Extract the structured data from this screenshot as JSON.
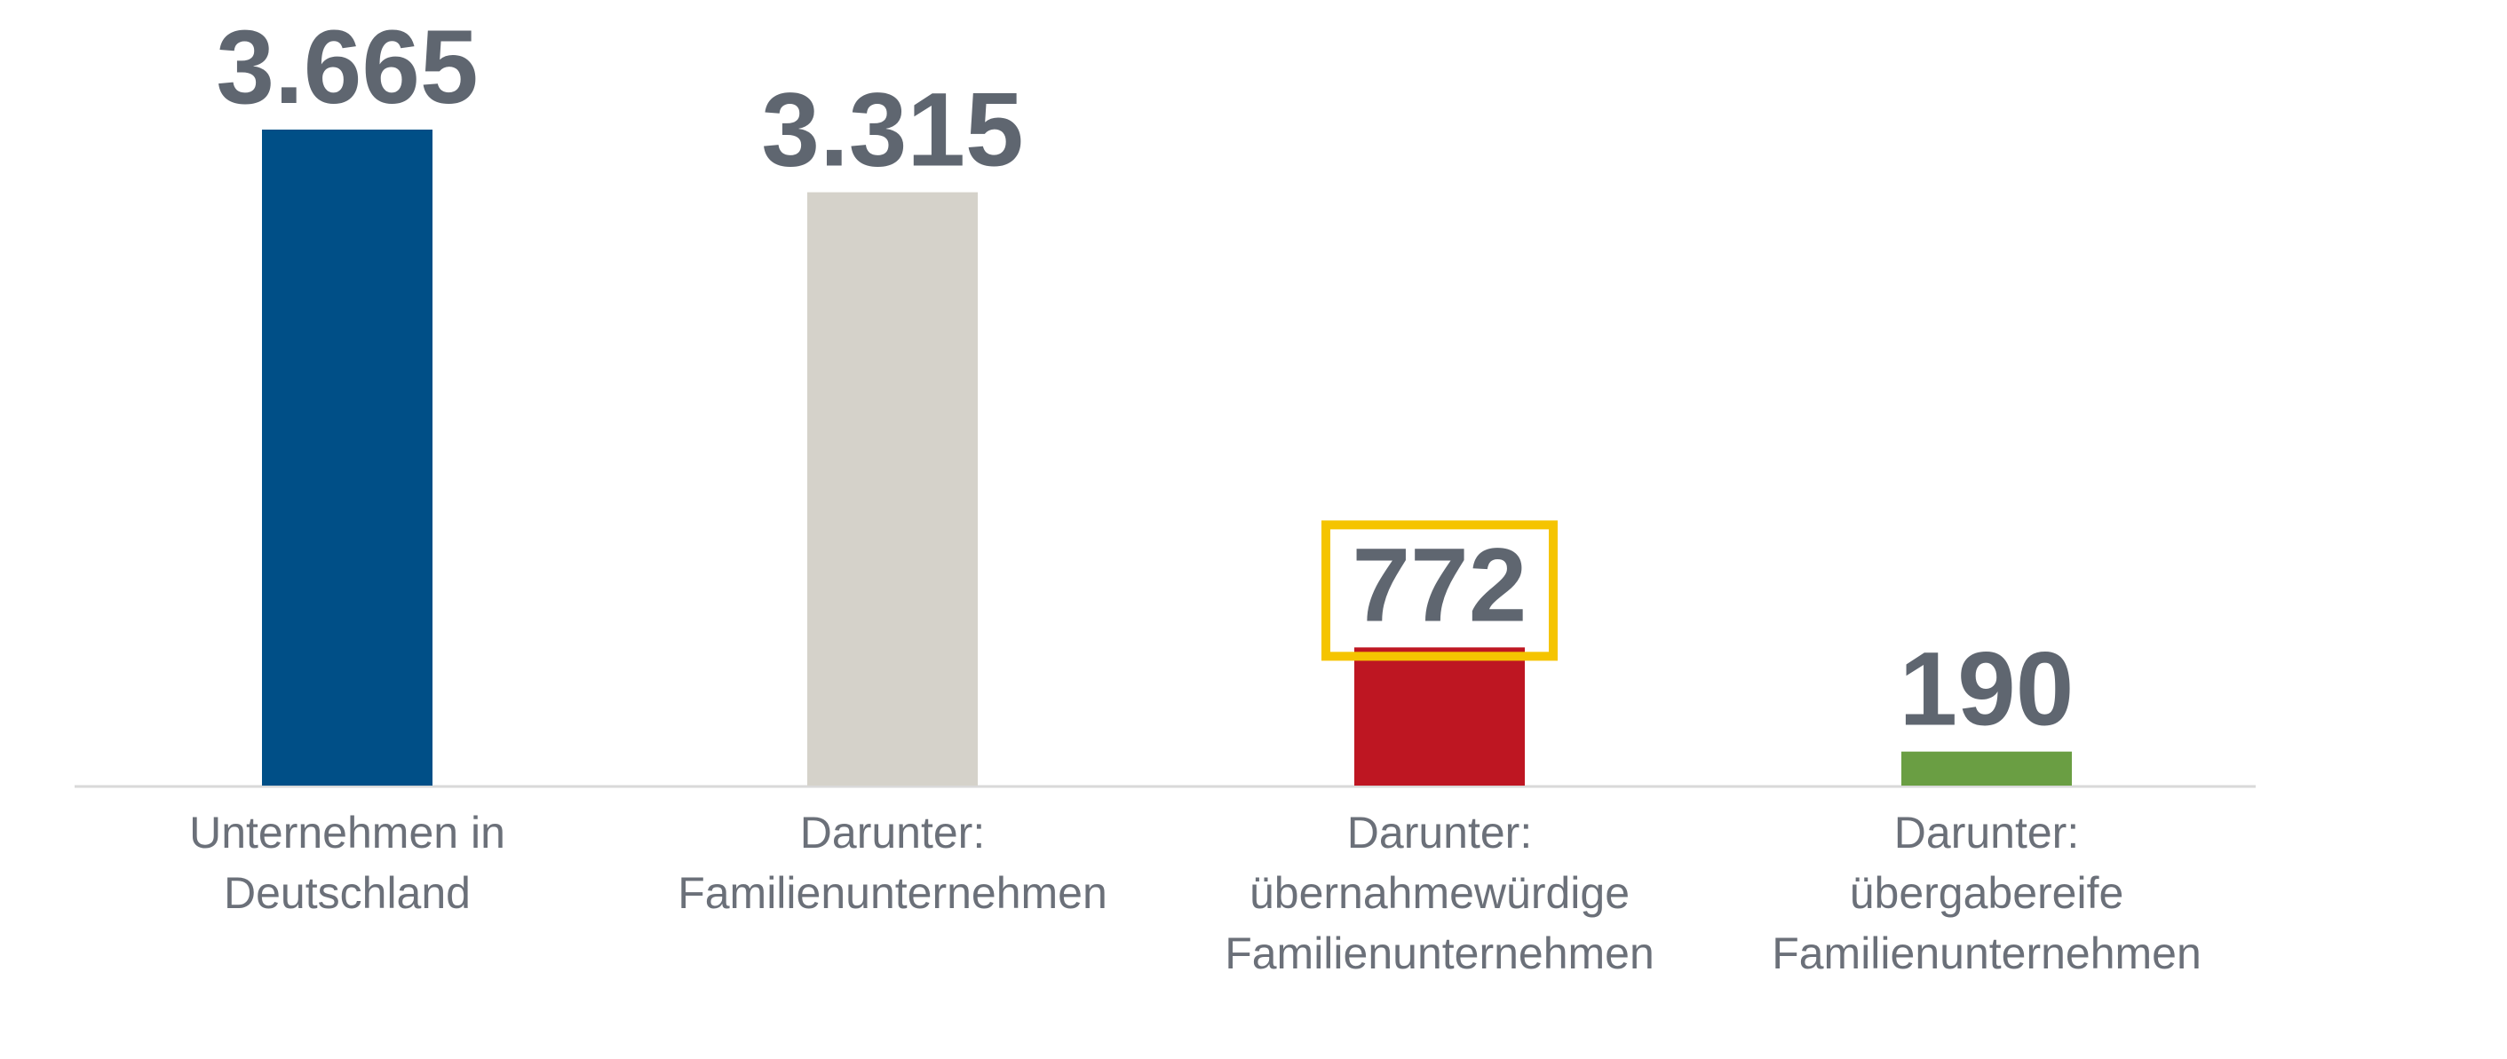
{
  "chart_data": {
    "type": "bar",
    "title": "",
    "xlabel": "",
    "ylabel": "",
    "ylim": [
      0,
      3665
    ],
    "grid": false,
    "legend": "none",
    "categories": [
      [
        "Unternehmen in",
        "Deutschland"
      ],
      [
        "Darunter:",
        "Familienunternehmen"
      ],
      [
        "Darunter:",
        "übernahmewürdige",
        "Familienunternehmen"
      ],
      [
        "Darunter:",
        "übergabereife",
        "Familienunternehmen"
      ]
    ],
    "values": [
      3665,
      3315,
      772,
      190
    ],
    "value_labels": [
      "3.665",
      "3.315",
      "772",
      "190"
    ],
    "bar_colors": [
      "#004f87",
      "#d5d2ca",
      "#be1622",
      "#6a9e43"
    ],
    "highlighted_index": 2,
    "highlight_color": "#f5c400",
    "text_color": "#5f6670",
    "category_text_color": "#6b7079",
    "axis_color": "#d9d9d9"
  }
}
